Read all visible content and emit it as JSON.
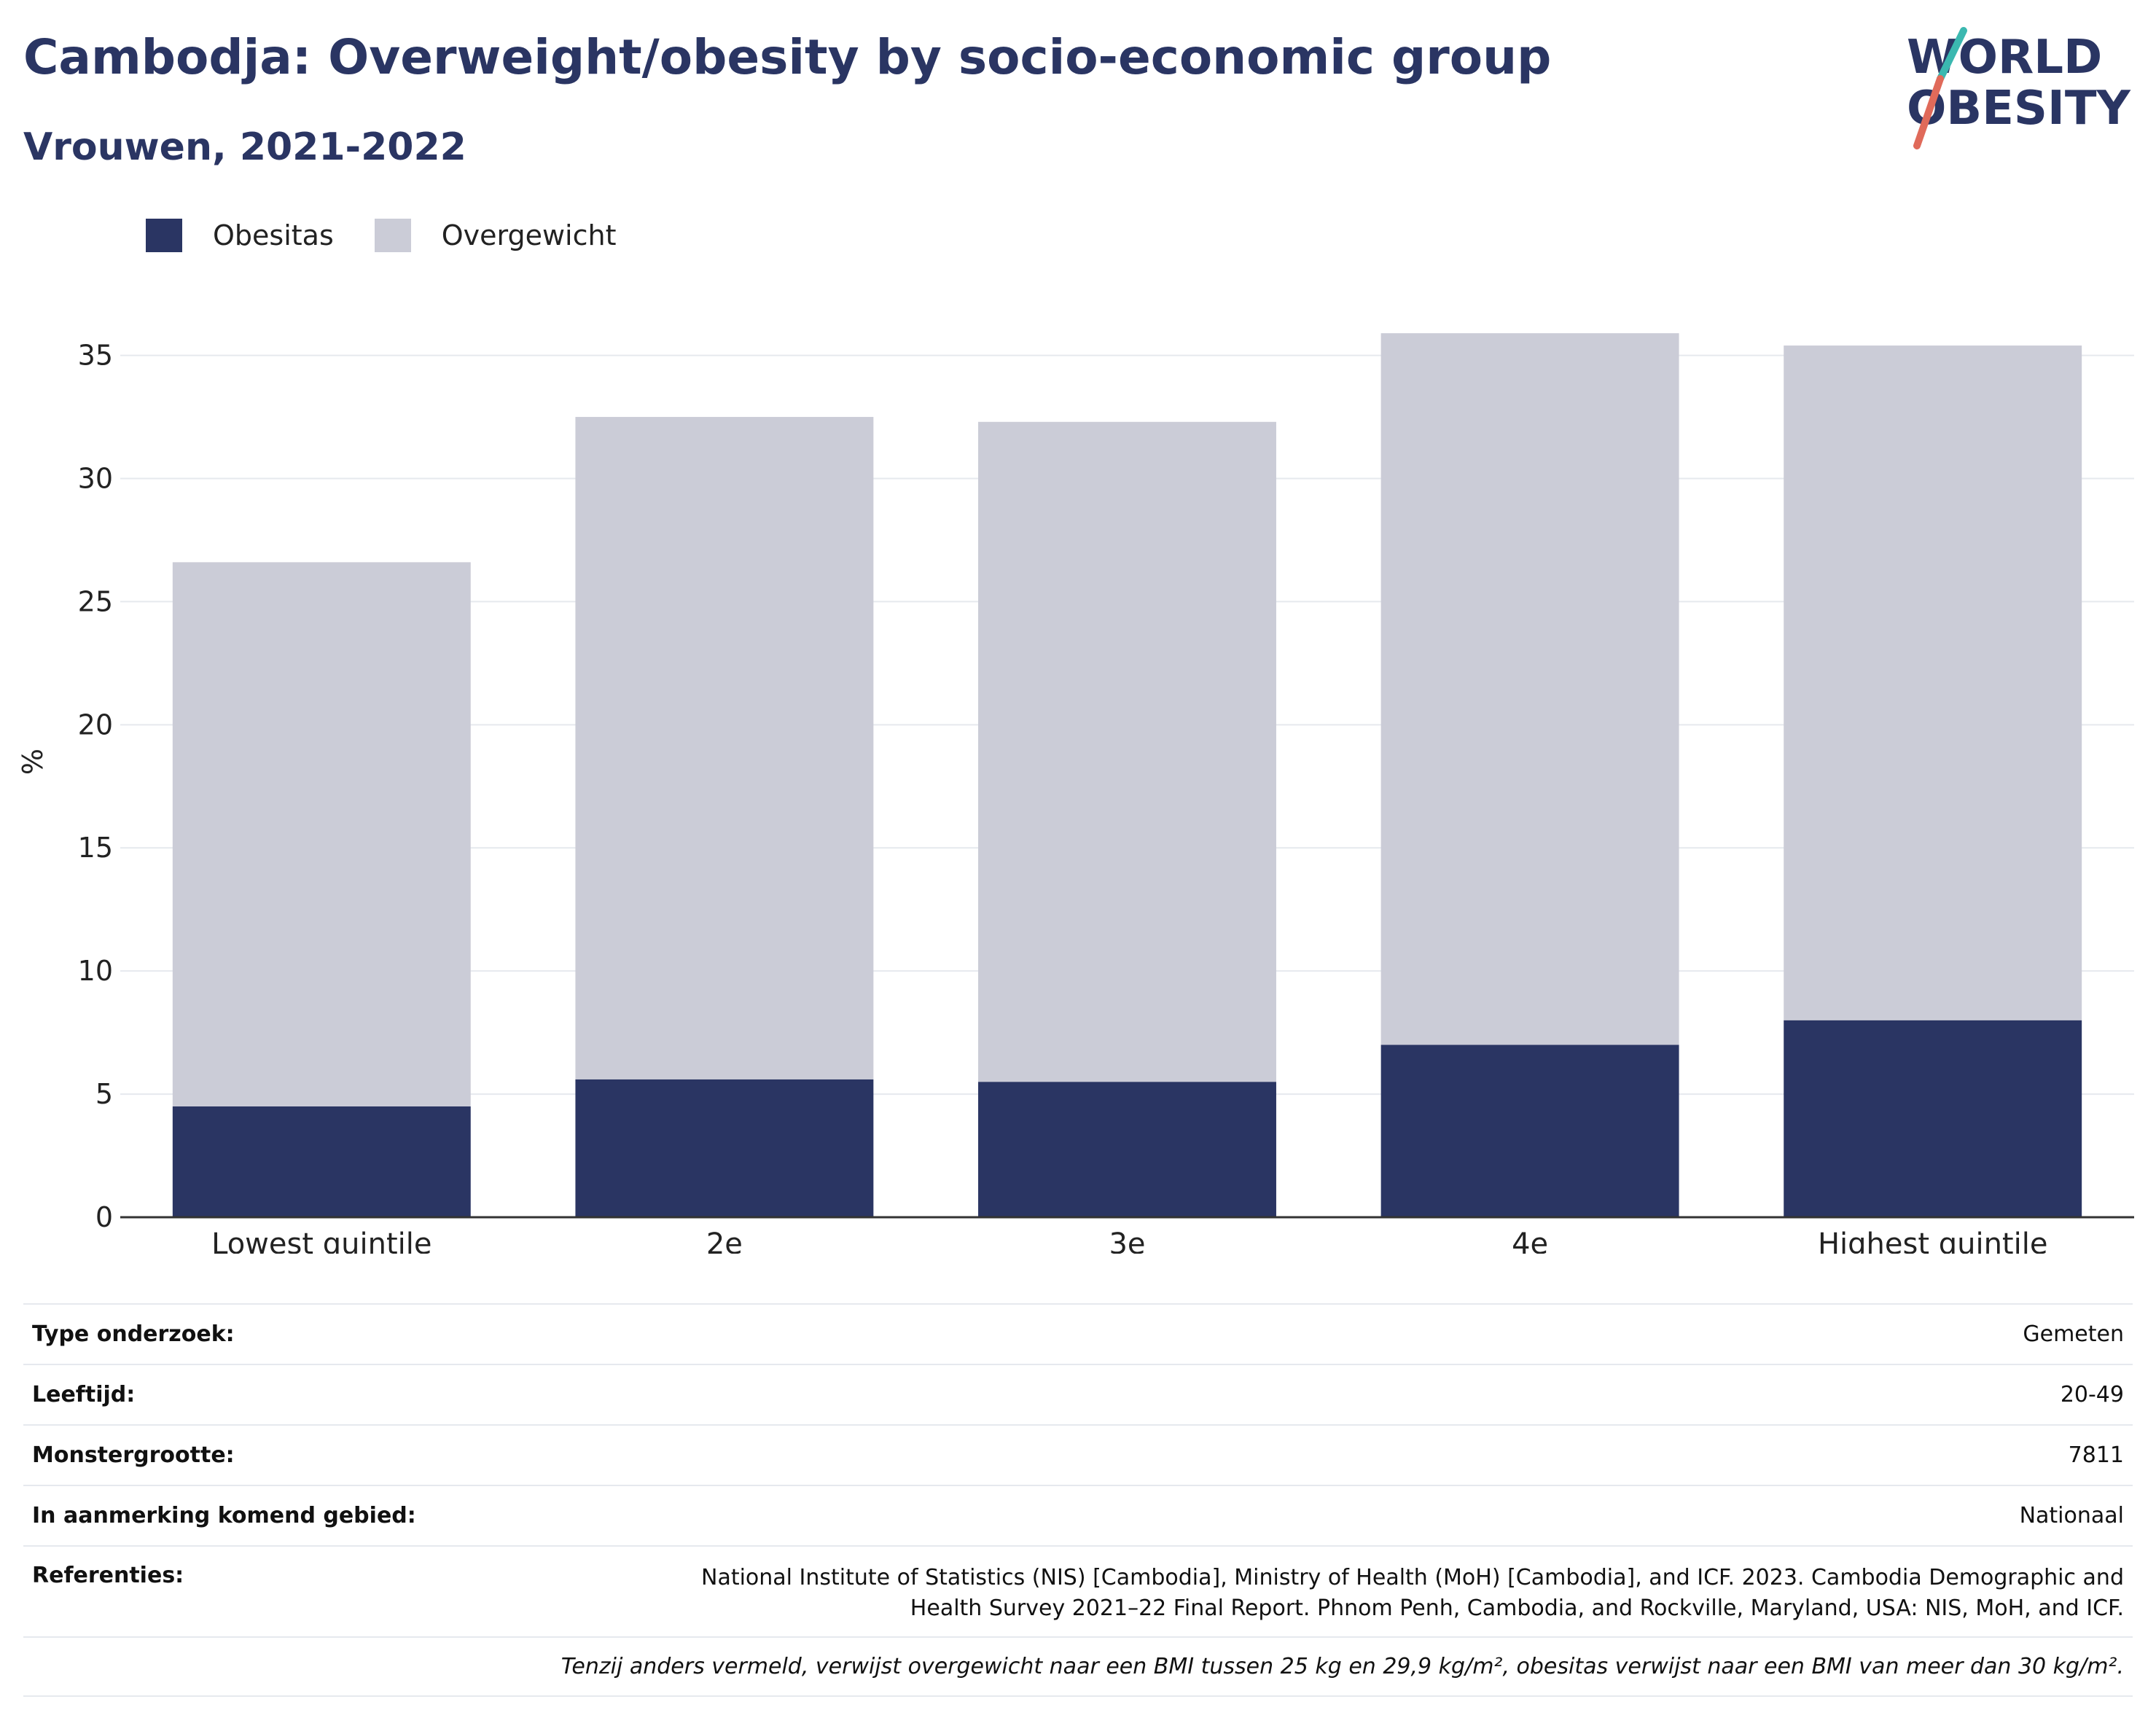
{
  "title": "Cambodja: Overweight/obesity by socio-economic group",
  "subtitle": "Vrouwen, 2021-2022",
  "logo": {
    "line1": "WORLD",
    "line2": "OBESITY"
  },
  "colors": {
    "obesitas": "#2a3563",
    "overgewicht": "#cbccd7",
    "text": "#2a3563",
    "grid": "#e6e9ee"
  },
  "chart_data": {
    "type": "bar",
    "stacked": true,
    "categories": [
      "Lowest quintile",
      "2e",
      "3e",
      "4e",
      "Highest quintile"
    ],
    "series": [
      {
        "name": "Obesitas",
        "values": [
          4.5,
          5.6,
          5.5,
          7.0,
          8.0
        ]
      },
      {
        "name": "Overgewicht",
        "values": [
          22.1,
          26.9,
          26.8,
          28.9,
          27.4
        ]
      }
    ],
    "ylabel": "%",
    "ylim": [
      0,
      37
    ],
    "yticks": [
      0,
      5,
      10,
      15,
      20,
      25,
      30,
      35
    ],
    "grid": true,
    "legend_position": "top-left"
  },
  "meta": {
    "rows": [
      {
        "label": "Type onderzoek:",
        "value": "Gemeten"
      },
      {
        "label": "Leeftijd:",
        "value": "20-49"
      },
      {
        "label": "Monstergrootte:",
        "value": "7811"
      },
      {
        "label": "In aanmerking komend gebied:",
        "value": "Nationaal"
      }
    ],
    "references_label": "Referenties:",
    "references_value": "National Institute of Statistics (NIS) [Cambodia], Ministry of Health (MoH) [Cambodia], and ICF. 2023. Cambodia Demographic and Health Survey 2021–22 Final Report. Phnom Penh, Cambodia, and Rockville, Maryland, USA: NIS, MoH, and ICF.",
    "note": "Tenzij anders vermeld, verwijst overgewicht naar een BMI tussen 25 kg en 29,9 kg/m², obesitas verwijst naar een BMI van meer dan 30 kg/m²."
  }
}
